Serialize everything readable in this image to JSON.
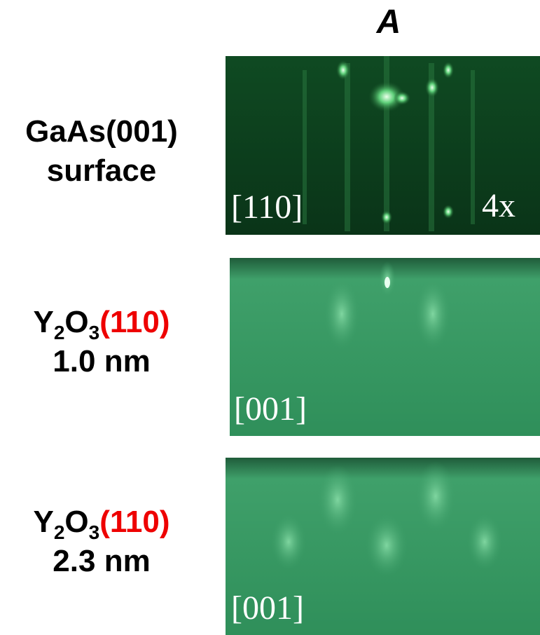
{
  "header": "A",
  "rows": [
    {
      "label": {
        "lines": [
          "GaAs(001)",
          "surface"
        ]
      },
      "image": {
        "direction": "[110]",
        "reconstruction": "4x"
      }
    },
    {
      "label": {
        "formula": [
          "Y",
          "2",
          "O",
          "3"
        ],
        "plane": "(110)",
        "thickness": "1.0 nm"
      },
      "image": {
        "direction": "[001]"
      }
    },
    {
      "label": {
        "formula": [
          "Y",
          "2",
          "O",
          "3"
        ],
        "plane": "(110)",
        "thickness": "2.3 nm"
      },
      "image": {
        "direction": "[001]"
      }
    }
  ]
}
